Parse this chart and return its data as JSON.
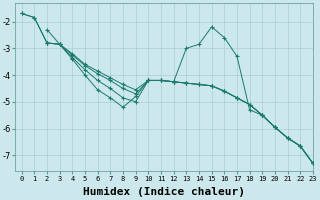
{
  "xlabel": "Humidex (Indice chaleur)",
  "ylabel": "",
  "xlim": [
    -0.5,
    23
  ],
  "ylim": [
    -7.6,
    -1.3
  ],
  "bg_color": "#cce8ec",
  "line_color": "#1a7a6e",
  "grid_color": "#aacdd4",
  "series": [
    {
      "x": [
        0,
        1,
        2,
        3,
        4,
        5,
        6,
        7,
        8,
        9,
        10,
        11,
        12,
        13,
        14,
        15,
        16,
        17,
        18,
        19,
        20,
        21,
        22,
        23
      ],
      "y": [
        -1.7,
        -1.85,
        -2.8,
        -2.85,
        -3.2,
        -3.6,
        -3.85,
        -4.1,
        -4.35,
        -4.55,
        -4.2,
        -4.2,
        -4.25,
        -4.3,
        -4.35,
        -4.4,
        -4.6,
        -4.85,
        -5.1,
        -5.5,
        -5.95,
        -6.35,
        -6.65,
        -7.3
      ]
    },
    {
      "x": [
        0,
        1,
        2,
        3,
        4,
        5,
        6,
        7,
        8,
        9,
        10,
        11,
        12,
        13,
        14,
        15,
        16,
        17,
        18,
        19,
        20,
        21,
        22,
        23
      ],
      "y": [
        -1.7,
        -1.85,
        -2.8,
        -2.85,
        -3.25,
        -3.65,
        -3.95,
        -4.2,
        -4.5,
        -4.7,
        -4.2,
        -4.2,
        -4.25,
        -4.3,
        -4.35,
        -4.4,
        -4.6,
        -4.85,
        -5.1,
        -5.5,
        -5.95,
        -6.35,
        -6.65,
        -7.3
      ]
    },
    {
      "x": [
        2,
        3,
        4,
        5,
        6,
        7,
        8,
        9,
        10,
        11,
        12,
        13,
        14,
        15,
        16,
        17,
        18,
        19,
        20,
        21,
        22,
        23
      ],
      "y": [
        -2.8,
        -2.85,
        -3.35,
        -3.8,
        -4.2,
        -4.5,
        -4.85,
        -5.0,
        -4.2,
        -4.2,
        -4.25,
        -4.3,
        -4.35,
        -4.4,
        -4.6,
        -4.85,
        -5.1,
        -5.5,
        -5.95,
        -6.35,
        -6.65,
        -7.3
      ]
    },
    {
      "x": [
        2,
        3,
        4,
        5,
        6,
        7,
        8,
        9,
        10,
        11,
        12,
        13,
        14,
        15,
        16,
        17,
        18,
        19,
        20,
        21,
        22,
        23
      ],
      "y": [
        -2.3,
        -2.85,
        -3.4,
        -4.0,
        -4.55,
        -4.85,
        -5.2,
        -4.8,
        -4.2,
        -4.2,
        -4.25,
        -3.0,
        -2.85,
        -2.2,
        -2.6,
        -3.3,
        -5.3,
        -5.5,
        -5.95,
        -6.35,
        -6.65,
        -7.3
      ]
    }
  ],
  "xtick_labels": [
    "0",
    "1",
    "2",
    "3",
    "4",
    "5",
    "6",
    "7",
    "8",
    "9",
    "10",
    "11",
    "12",
    "13",
    "14",
    "15",
    "16",
    "17",
    "18",
    "19",
    "20",
    "21",
    "22",
    "23"
  ],
  "ytick_values": [
    -7,
    -6,
    -5,
    -4,
    -3,
    -2
  ],
  "font_size": 6,
  "marker": "+"
}
